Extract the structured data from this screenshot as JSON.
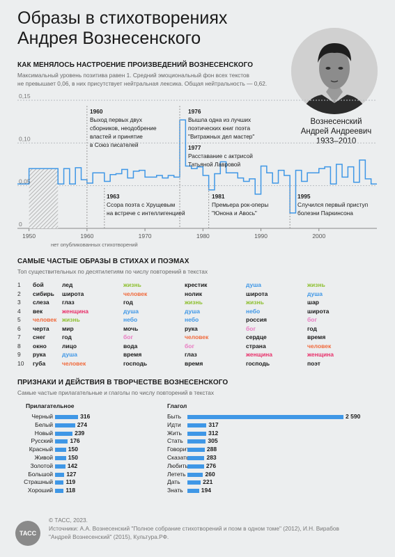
{
  "title_line1": "Образы в стихотворениях",
  "title_line2": "Андрея Вознесенского",
  "person": {
    "name_line1": "Вознесенский",
    "name_line2": "Андрей Андреевич",
    "years": "1933–2010"
  },
  "mood": {
    "heading": "КАК МЕНЯЛОСЬ НАСТРОЕНИЕ ПРОИЗВЕДЕНИЙ ВОЗНЕСЕНСКОГО",
    "desc_line1": "Максимальный уровень позитива равен 1. Средний эмоциональный фон всех текстов",
    "desc_line2": "не превышает 0,06, в них присутствует нейтральная лексика. Общая нейтральность —  0,62.",
    "unpublished_note": "нет опубликованных стихотворений",
    "events": [
      {
        "year": "1960",
        "l1": "Выход первых двух",
        "l2": "сборников, неодобрение",
        "l3": "властей и принятие",
        "l4": "в Союз писателей"
      },
      {
        "year": "1963",
        "l1": "Ссора поэта с Хрущевым",
        "l2": "на встрече с интеллигенцией",
        "l3": "",
        "l4": ""
      },
      {
        "year": "1976",
        "l1": "Вышла одна из лучших",
        "l2": "поэтических книг поэта",
        "l3": "\"Витражных дел мастер\"",
        "l4": ""
      },
      {
        "year": "1977",
        "l1": "Расставание с актрисой",
        "l2": "Татьяной Лавровой",
        "l3": "",
        "l4": ""
      },
      {
        "year": "1981",
        "l1": "Премьера рок-оперы",
        "l2": "\"Юнона и Авось\"",
        "l3": "",
        "l4": ""
      },
      {
        "year": "1995",
        "l1": "Случился первый приступ",
        "l2": "болезни Паркинсона",
        "l3": "",
        "l4": ""
      }
    ]
  },
  "chart_data": [
    {
      "type": "line",
      "title": "КАК МЕНЯЛОСЬ НАСТРОЕНИЕ ПРОИЗВЕДЕНИЙ ВОЗНЕСЕНСКОГО",
      "step": true,
      "xlim": [
        1948,
        2010
      ],
      "ylim": [
        0,
        0.15
      ],
      "y_ticks": [
        "0",
        "0,05",
        "0,10",
        "0,15"
      ],
      "x_ticks": [
        "1950",
        "1960",
        "1970",
        "1980",
        "1990",
        "2000"
      ],
      "grid": true,
      "hatched_region": [
        1950,
        1955
      ],
      "x": [
        1948,
        1950,
        1953,
        1955,
        1956,
        1957,
        1958,
        1959,
        1960,
        1961,
        1962,
        1963,
        1964,
        1965,
        1966,
        1967,
        1968,
        1969,
        1970,
        1971,
        1972,
        1973,
        1974,
        1975,
        1976,
        1977,
        1978,
        1979,
        1980,
        1981,
        1982,
        1983,
        1984,
        1985,
        1986,
        1987,
        1988,
        1989,
        1990,
        1991,
        1992,
        1993,
        1994,
        1995,
        1996,
        1997,
        1998,
        1999,
        2000,
        2001,
        2002,
        2003,
        2004,
        2005,
        2006,
        2007,
        2008,
        2009
      ],
      "y": [
        0.052,
        0.07,
        0.07,
        0.052,
        0.07,
        0.052,
        0.071,
        0.057,
        0.053,
        0.065,
        0.065,
        0.055,
        0.063,
        0.064,
        0.069,
        0.059,
        0.067,
        0.068,
        0.06,
        0.06,
        0.062,
        0.059,
        0.062,
        0.06,
        0.127,
        0.073,
        0.07,
        0.072,
        0.062,
        0.045,
        0.064,
        0.078,
        0.065,
        0.065,
        0.059,
        0.055,
        0.058,
        0.04,
        0.073,
        0.065,
        0.053,
        0.068,
        0.062,
        0.018,
        0.068,
        0.055,
        0.065,
        0.065,
        0.07,
        0.072,
        0.052,
        0.075,
        0.06,
        0.072,
        0.054,
        0.08,
        0.058,
        0.052
      ]
    },
    {
      "type": "bar",
      "title": "Прилагательное",
      "categories": [
        "Черный",
        "Белый",
        "Новый",
        "Русский",
        "Красный",
        "Живой",
        "Золотой",
        "Большой",
        "Страшный",
        "Хороший"
      ],
      "values": [
        316,
        274,
        239,
        176,
        150,
        150,
        142,
        127,
        119,
        118
      ]
    },
    {
      "type": "bar",
      "title": "Глагол",
      "categories": [
        "Быть",
        "Идти",
        "Жить",
        "Стать",
        "Говорить",
        "Сказать",
        "Любить",
        "Лететь",
        "Дать",
        "Знать"
      ],
      "values": [
        2590,
        317,
        312,
        305,
        288,
        283,
        276,
        260,
        221,
        194
      ]
    }
  ],
  "images": {
    "heading": "САМЫЕ ЧАСТЫЕ ОБРАЗЫ В СТИХАХ И ПОЭМАХ",
    "desc": "Топ существительных по десятилетиям по числу повторений в текстах",
    "ranks": [
      "1",
      "2",
      "3",
      "4",
      "5",
      "6",
      "7",
      "8",
      "9",
      "10"
    ],
    "colors": {
      "жизнь": "#8dbf2f",
      "человек": "#f06a3c",
      "душа": "#3f97e6",
      "небо": "#3f97e6",
      "женщина": "#e8306a",
      "бог": "#e879c0"
    },
    "columns": [
      [
        "бой",
        "сибирь",
        "слеза",
        "век",
        "человек",
        "черта",
        "снег",
        "окно",
        "рука",
        "губа"
      ],
      [
        "лед",
        "широта",
        "глаз",
        "женщина",
        "жизнь",
        "мир",
        "год",
        "лицо",
        "душа",
        "человек"
      ],
      [
        "жизнь",
        "человек",
        "год",
        "душа",
        "небо",
        "мочь",
        "бог",
        "вода",
        "время",
        "господь"
      ],
      [
        "крестик",
        "нолик",
        "жизнь",
        "душа",
        "небо",
        "рука",
        "человек",
        "бог",
        "глаз",
        "время"
      ],
      [
        "душа",
        "широта",
        "жизнь",
        "небо",
        "россия",
        "бог",
        "сердце",
        "страна",
        "женщина",
        "господь"
      ],
      [
        "жизнь",
        "душа",
        "шар",
        "широта",
        "бог",
        "год",
        "время",
        "человек",
        "женщина",
        "поэт"
      ]
    ]
  },
  "features": {
    "heading": "ПРИЗНАКИ И ДЕЙСТВИЯ В ТВОРЧЕСТВЕ ВОЗНЕСЕНСКОГО",
    "desc": "Самые частые прилагательные и глаголы по числу повторений в текстах",
    "adj_title": "Прилагательное",
    "verb_title": "Глагол",
    "adj_labels": [
      "Черный",
      "Белый",
      "Новый",
      "Русский",
      "Красный",
      "Живой",
      "Золотой",
      "Большой",
      "Страшный",
      "Хороший"
    ],
    "adj_values": [
      "316",
      "274",
      "239",
      "176",
      "150",
      "150",
      "142",
      "127",
      "119",
      "118"
    ],
    "verb_labels": [
      "Быть",
      "Идти",
      "Жить",
      "Стать",
      "Говорить",
      "Сказать",
      "Любить",
      "Лететь",
      "Дать",
      "Знать"
    ],
    "verb_values": [
      "2 590",
      "317",
      "312",
      "305",
      "288",
      "283",
      "276",
      "260",
      "221",
      "194"
    ]
  },
  "footer": {
    "line1": "© ТАСС, 2023.",
    "line2": "Источники: А.А. Вознесенский \"Полное собрание стихотворений и поэм в одном томе\" (2012), И.Н. Вирабов",
    "line3": "\"Андрей Вознесенский\" (2015), Культура.РФ.",
    "logo": "ТАСС"
  },
  "accent": "#3f97e6"
}
